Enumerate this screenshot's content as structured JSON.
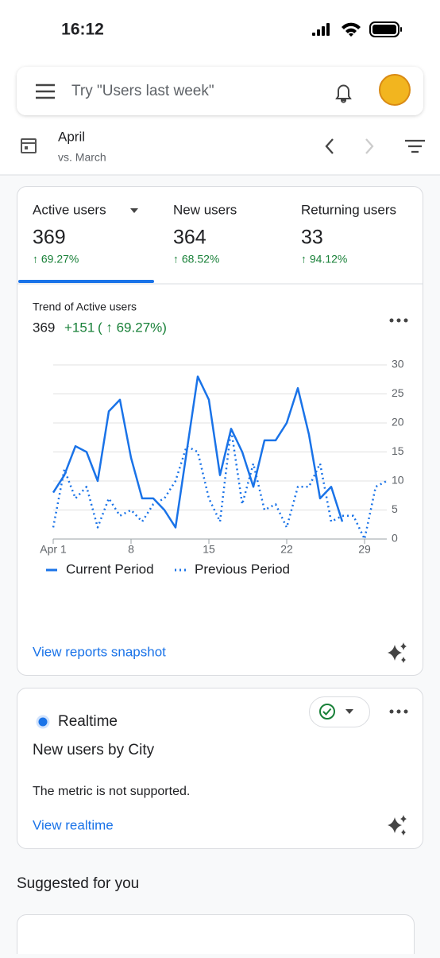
{
  "status_bar": {
    "time": "16:12"
  },
  "search": {
    "placeholder": "Try \"Users last week\""
  },
  "date_range": {
    "period": "April",
    "comparison": "vs. March"
  },
  "tabs": [
    {
      "label": "Active users",
      "value": "369",
      "change": "↑ 69.27%"
    },
    {
      "label": "New users",
      "value": "364",
      "change": "↑ 68.52%"
    },
    {
      "label": "Returning users",
      "value": "33",
      "change": "↑ 94.12%"
    }
  ],
  "trend_card": {
    "heading": "Trend of Active users",
    "total": "369",
    "delta": "+151",
    "delta_pct": "( ↑ 69.27%)",
    "link": "View reports snapshot"
  },
  "chart_data": {
    "type": "line",
    "x": [
      1,
      2,
      3,
      4,
      5,
      6,
      7,
      8,
      9,
      10,
      11,
      12,
      13,
      14,
      15,
      16,
      17,
      18,
      19,
      20,
      21,
      22,
      23,
      24,
      25,
      26,
      27,
      28,
      29,
      30,
      31
    ],
    "series": [
      {
        "name": "Current Period",
        "color": "#1a73e8",
        "line_style": "solid",
        "values": [
          8,
          11,
          16,
          15,
          10,
          22,
          24,
          14,
          7,
          7,
          5,
          2,
          15,
          28,
          24,
          11,
          19,
          15,
          9,
          17,
          17,
          20,
          26,
          18,
          7,
          9,
          3,
          null,
          null,
          null,
          null
        ]
      },
      {
        "name": "Previous Period",
        "color": "#1a73e8",
        "line_style": "dotted",
        "values": [
          2,
          12,
          7,
          9,
          2,
          7,
          4,
          5,
          3,
          6,
          7,
          10,
          16,
          15,
          7,
          3,
          19,
          6,
          13,
          5,
          6,
          2,
          9,
          9,
          13,
          3,
          4,
          4,
          0,
          9,
          10
        ]
      }
    ],
    "xlim": [
      1,
      31
    ],
    "xticks": [
      {
        "value": 1,
        "label": "Apr 1"
      },
      8,
      15,
      22,
      29
    ],
    "ylim": [
      0,
      30
    ],
    "yticks": [
      0,
      5,
      10,
      15,
      20,
      25,
      30
    ],
    "grid": true
  },
  "realtime_card": {
    "title": "Realtime",
    "subtitle": "New users by City",
    "message": "The metric is not supported.",
    "link": "View realtime"
  },
  "suggested": {
    "heading": "Suggested for you"
  }
}
